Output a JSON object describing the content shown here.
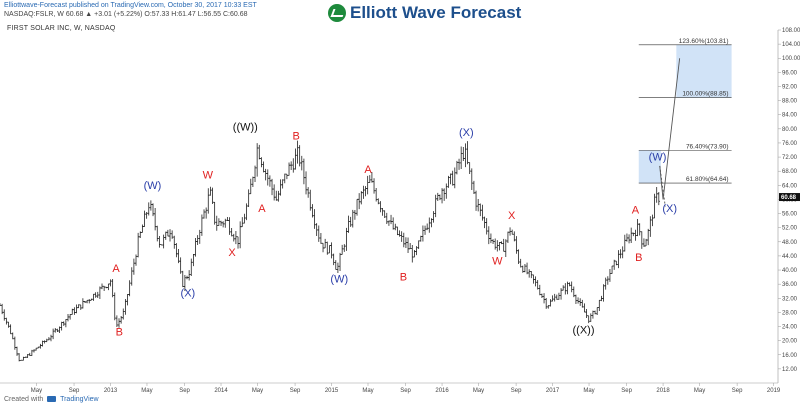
{
  "header": {
    "publisher_line": "Elliottwave-Forecast published on TradingView.com, October 30, 2017 10:33 EST",
    "quote_line": "NASDAQ:FSLR, W   60.68  ▲ +3.01 (+5.22%)  O:57.33  H:61.47  L:56.55  C:60.68"
  },
  "logo": {
    "text": "Elliott Wave Forecast",
    "icon": "wave-check-icon",
    "color": "#1e8a3c"
  },
  "footer": {
    "created_with": "Created with",
    "brand": "TradingView",
    "icon": "tradingview-icon"
  },
  "colors": {
    "red_label": "#e02020",
    "blue_label": "#2a3ea8",
    "black_label": "#111111",
    "target_box": "#cfe2f7"
  },
  "chart_data": {
    "type": "bar",
    "title": "FIRST SOLAR INC, W, NASDAQ",
    "xlabel": "",
    "ylabel": "",
    "ylim": [
      8,
      108
    ],
    "last_price": "60.68",
    "x_ticks": [
      {
        "label": "May",
        "t": 2012.33
      },
      {
        "label": "Sep",
        "t": 2012.67
      },
      {
        "label": "2013",
        "t": 2013.0
      },
      {
        "label": "May",
        "t": 2013.33
      },
      {
        "label": "Sep",
        "t": 2013.67
      },
      {
        "label": "2014",
        "t": 2014.0
      },
      {
        "label": "May",
        "t": 2014.33
      },
      {
        "label": "Sep",
        "t": 2014.67
      },
      {
        "label": "2015",
        "t": 2015.0
      },
      {
        "label": "May",
        "t": 2015.33
      },
      {
        "label": "Sep",
        "t": 2015.67
      },
      {
        "label": "2016",
        "t": 2016.0
      },
      {
        "label": "May",
        "t": 2016.33
      },
      {
        "label": "Sep",
        "t": 2016.67
      },
      {
        "label": "2017",
        "t": 2017.0
      },
      {
        "label": "May",
        "t": 2017.33
      },
      {
        "label": "Sep",
        "t": 2017.67
      },
      {
        "label": "2018",
        "t": 2018.0
      },
      {
        "label": "May",
        "t": 2018.33
      },
      {
        "label": "Sep",
        "t": 2018.67
      },
      {
        "label": "2019",
        "t": 2019.0
      }
    ],
    "y_ticks": [
      "108.00",
      "104.00",
      "100.00",
      "96.00",
      "92.00",
      "88.00",
      "84.00",
      "80.00",
      "76.00",
      "72.00",
      "68.00",
      "64.00",
      "60.00",
      "56.00",
      "52.00",
      "48.00",
      "44.00",
      "40.00",
      "36.00",
      "32.00",
      "28.00",
      "24.00",
      "20.00",
      "16.00",
      "12.00"
    ],
    "y_tick_values": [
      108,
      104,
      100,
      96,
      92,
      88,
      84,
      80,
      76,
      72,
      68,
      64,
      60,
      56,
      52,
      48,
      44,
      40,
      36,
      32,
      28,
      24,
      20,
      16,
      12
    ],
    "price_path": [
      [
        2012.0,
        30
      ],
      [
        2012.1,
        22
      ],
      [
        2012.18,
        14
      ],
      [
        2012.3,
        17
      ],
      [
        2012.45,
        21
      ],
      [
        2012.65,
        28
      ],
      [
        2012.85,
        33
      ],
      [
        2013.0,
        37
      ],
      [
        2013.05,
        24
      ],
      [
        2013.12,
        28
      ],
      [
        2013.25,
        48
      ],
      [
        2013.35,
        59
      ],
      [
        2013.45,
        47
      ],
      [
        2013.55,
        52
      ],
      [
        2013.65,
        36
      ],
      [
        2013.72,
        40
      ],
      [
        2013.8,
        51
      ],
      [
        2013.9,
        62
      ],
      [
        2013.95,
        53
      ],
      [
        2014.05,
        54
      ],
      [
        2014.15,
        48
      ],
      [
        2014.25,
        60
      ],
      [
        2014.33,
        75
      ],
      [
        2014.4,
        68
      ],
      [
        2014.5,
        60
      ],
      [
        2014.6,
        68
      ],
      [
        2014.7,
        73
      ],
      [
        2014.8,
        60
      ],
      [
        2014.9,
        48
      ],
      [
        2015.0,
        45
      ],
      [
        2015.05,
        40
      ],
      [
        2015.15,
        52
      ],
      [
        2015.25,
        60
      ],
      [
        2015.35,
        65
      ],
      [
        2015.45,
        58
      ],
      [
        2015.55,
        52
      ],
      [
        2015.65,
        48
      ],
      [
        2015.75,
        44
      ],
      [
        2015.85,
        52
      ],
      [
        2016.0,
        63
      ],
      [
        2016.1,
        66
      ],
      [
        2016.2,
        74
      ],
      [
        2016.3,
        60
      ],
      [
        2016.45,
        48
      ],
      [
        2016.55,
        46
      ],
      [
        2016.62,
        52
      ],
      [
        2016.7,
        42
      ],
      [
        2016.85,
        36
      ],
      [
        2016.95,
        30
      ],
      [
        2017.05,
        33
      ],
      [
        2017.15,
        36
      ],
      [
        2017.25,
        30
      ],
      [
        2017.33,
        26
      ],
      [
        2017.4,
        29
      ],
      [
        2017.5,
        38
      ],
      [
        2017.6,
        44
      ],
      [
        2017.7,
        50
      ],
      [
        2017.78,
        52
      ],
      [
        2017.82,
        47
      ],
      [
        2017.87,
        51
      ],
      [
        2017.93,
        60
      ],
      [
        2017.97,
        61
      ]
    ],
    "projection": [
      [
        2017.97,
        69.5
      ],
      [
        2018.0,
        60
      ],
      [
        2018.15,
        100
      ]
    ],
    "projection_dashed": [
      [
        2017.97,
        69.5
      ],
      [
        2018.02,
        58
      ]
    ],
    "levels": [
      {
        "label": "123.60%(103.81)",
        "value": 103.81
      },
      {
        "label": "100.00%(88.85)",
        "value": 88.85
      },
      {
        "label": "76.40%(73.90)",
        "value": 73.9
      },
      {
        "label": "61.80%(64.64)",
        "value": 64.64
      }
    ],
    "target_zones": [
      {
        "from": 88.85,
        "to": 103.81,
        "t_start": 2018.12,
        "t_end": 2018.62
      },
      {
        "from": 64.64,
        "to": 73.9,
        "t_start": 2017.78,
        "t_end": 2017.98
      }
    ],
    "annotations": [
      {
        "text": "A",
        "t": 2013.05,
        "y": 39.5,
        "color": "red"
      },
      {
        "text": "B",
        "t": 2013.08,
        "y": 21.5,
        "color": "red"
      },
      {
        "text": "(W)",
        "t": 2013.38,
        "y": 63,
        "color": "blue"
      },
      {
        "text": "(X)",
        "t": 2013.7,
        "y": 32.5,
        "color": "blue"
      },
      {
        "text": "W",
        "t": 2013.88,
        "y": 66,
        "color": "red"
      },
      {
        "text": "X",
        "t": 2014.1,
        "y": 44,
        "color": "red"
      },
      {
        "text": "((W))",
        "t": 2014.22,
        "y": 79.5,
        "color": "black"
      },
      {
        "text": "A",
        "t": 2014.37,
        "y": 56.5,
        "color": "red"
      },
      {
        "text": "B",
        "t": 2014.68,
        "y": 77,
        "color": "red"
      },
      {
        "text": "(W)",
        "t": 2015.07,
        "y": 36.5,
        "color": "blue"
      },
      {
        "text": "A",
        "t": 2015.33,
        "y": 67.5,
        "color": "red"
      },
      {
        "text": "B",
        "t": 2015.65,
        "y": 37,
        "color": "red"
      },
      {
        "text": "(X)",
        "t": 2016.22,
        "y": 78,
        "color": "blue"
      },
      {
        "text": "X",
        "t": 2016.63,
        "y": 54.5,
        "color": "red"
      },
      {
        "text": "W",
        "t": 2016.5,
        "y": 41.5,
        "color": "red"
      },
      {
        "text": "((X))",
        "t": 2017.28,
        "y": 22,
        "color": "black"
      },
      {
        "text": "A",
        "t": 2017.75,
        "y": 56,
        "color": "red"
      },
      {
        "text": "B",
        "t": 2017.78,
        "y": 42.5,
        "color": "red"
      },
      {
        "text": "(W)",
        "t": 2017.95,
        "y": 71,
        "color": "blue"
      },
      {
        "text": "(X)",
        "t": 2018.06,
        "y": 56.5,
        "color": "blue"
      }
    ]
  }
}
